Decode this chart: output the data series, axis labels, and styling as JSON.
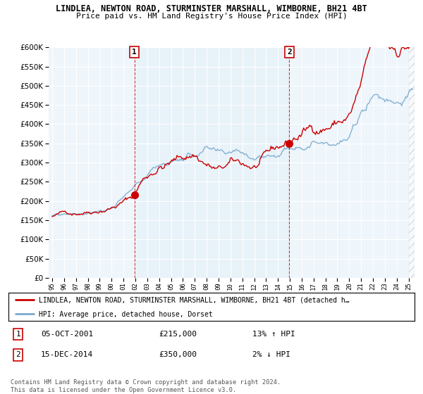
{
  "title": "LINDLEA, NEWTON ROAD, STURMINSTER MARSHALL, WIMBORNE, BH21 4BT",
  "subtitle": "Price paid vs. HM Land Registry's House Price Index (HPI)",
  "legend_line1": "LINDLEA, NEWTON ROAD, STURMINSTER MARSHALL, WIMBORNE, BH21 4BT (detached h…",
  "legend_line2": "HPI: Average price, detached house, Dorset",
  "footnote": "Contains HM Land Registry data © Crown copyright and database right 2024.\nThis data is licensed under the Open Government Licence v3.0.",
  "annotation1": {
    "label": "1",
    "date": "05-OCT-2001",
    "price": "£215,000",
    "hpi_change": "13% ↑ HPI",
    "x_year": 2001.917
  },
  "annotation2": {
    "label": "2",
    "date": "15-DEC-2014",
    "price": "£350,000",
    "hpi_change": "2% ↓ HPI",
    "x_year": 2014.958
  },
  "sale1_value": 215000,
  "sale2_value": 350000,
  "ylim": [
    0,
    600000
  ],
  "yticks": [
    0,
    50000,
    100000,
    150000,
    200000,
    250000,
    300000,
    350000,
    400000,
    450000,
    500000,
    550000,
    600000
  ],
  "xlim_start": 1994.7,
  "xlim_end": 2025.5,
  "red_color": "#cc0000",
  "blue_color": "#7aabcf",
  "fill_blue": "#daeaf5",
  "background_chart": "#eef5fb",
  "grid_color": "#ffffff",
  "hatch_color": "#c0c0c0"
}
